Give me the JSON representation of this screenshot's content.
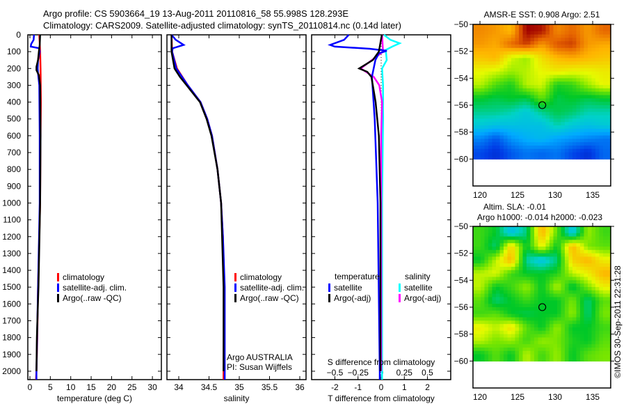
{
  "header": {
    "title_line1": "Argo profile: CS 5903664_19 13-Aug-2011 20110816_58 55.998S 128.293E",
    "title_line2": "Climatology: CARS2009. Satellite-adjusted climatology: synTS_20110814.nc (0.14d later)"
  },
  "colors": {
    "climatology": "#ff0000",
    "satellite": "#0000ff",
    "argo": "#000000",
    "salinity_satellite": "#00ffff",
    "salinity_argo": "#ff00ff"
  },
  "chart_data": [
    {
      "type": "line",
      "name": "temperature-profile",
      "xlabel": "temperature (deg C)",
      "ylabel": "",
      "xlim": [
        -0.5,
        32.7
      ],
      "ylim": [
        2050,
        0
      ],
      "xticks": [
        0,
        5,
        10,
        15,
        20,
        25,
        30
      ],
      "yticks": [
        0,
        100,
        200,
        300,
        400,
        500,
        600,
        700,
        800,
        900,
        1000,
        1100,
        1200,
        1300,
        1400,
        1500,
        1600,
        1700,
        1800,
        1900,
        2000
      ],
      "legend": [
        "climatology",
        "satellite-adj. clim.",
        "Argo(..raw -QC)"
      ],
      "series": [
        {
          "name": "climatology",
          "color": "#ff0000",
          "depth": [
            0,
            100,
            200,
            400,
            600,
            1000,
            1100,
            1400,
            1500,
            1800,
            2000,
            2050
          ],
          "values": [
            2.3,
            2.5,
            2.6,
            2.7,
            2.6,
            2.5,
            2.4,
            2.1,
            2.0,
            1.8,
            1.6,
            1.5
          ]
        },
        {
          "name": "satellite-adj. clim.",
          "color": "#0000ff",
          "depth": [
            0,
            30,
            55,
            70,
            80,
            100,
            150,
            200,
            230,
            300,
            600,
            1000,
            1500,
            2000,
            2050
          ],
          "values": [
            1.0,
            0.9,
            0.3,
            0.2,
            2.3,
            2.4,
            2.0,
            1.9,
            2.0,
            2.3,
            2.4,
            2.4,
            2.0,
            1.6,
            1.6
          ]
        },
        {
          "name": "Argo(..raw -QC)",
          "color": "#000000",
          "depth": [
            0,
            60,
            100,
            150,
            190,
            210,
            240,
            300,
            600,
            1000,
            1500,
            1800,
            2000
          ],
          "values": [
            2.5,
            2.4,
            2.2,
            2.0,
            1.6,
            1.6,
            2.2,
            2.5,
            2.6,
            2.5,
            2.1,
            1.7,
            1.6
          ]
        }
      ]
    },
    {
      "type": "line",
      "name": "salinity-profile",
      "xlabel": "salinity",
      "xlim": [
        33.85,
        36.15
      ],
      "ylim": [
        2050,
        0
      ],
      "xticks": [
        34,
        34.5,
        35,
        35.5,
        36
      ],
      "xtick_labels": [
        "34",
        "34.5",
        "35",
        "35.5",
        "36"
      ],
      "legend": [
        "climatology",
        "satellite-adj. clim.",
        "Argo(..raw -QC)"
      ],
      "annotation_line1": "Argo AUSTRALIA",
      "annotation_line2": "PI: Susan Wijffels",
      "series": [
        {
          "name": "climatology",
          "color": "#ff0000",
          "depth": [
            0,
            100,
            200,
            300,
            400,
            500,
            600,
            800,
            1000,
            1200,
            1500,
            2000,
            2050
          ],
          "values": [
            33.88,
            33.89,
            33.97,
            34.15,
            34.36,
            34.47,
            34.55,
            34.64,
            34.7,
            34.73,
            34.75,
            34.74,
            34.74
          ]
        },
        {
          "name": "satellite-adj. clim.",
          "color": "#0000ff",
          "depth": [
            0,
            30,
            60,
            80,
            100,
            200,
            300,
            400,
            500,
            600,
            800,
            1000,
            1200,
            1500,
            2000,
            2050
          ],
          "values": [
            33.88,
            33.95,
            34.08,
            33.9,
            33.89,
            33.96,
            34.15,
            34.36,
            34.47,
            34.55,
            34.64,
            34.7,
            34.73,
            34.76,
            34.76,
            34.76
          ]
        },
        {
          "name": "Argo(..raw -QC)",
          "color": "#000000",
          "depth": [
            0,
            100,
            200,
            250,
            300,
            400,
            500,
            600,
            800,
            1000,
            1500,
            2000
          ],
          "values": [
            33.88,
            33.88,
            33.93,
            34.02,
            34.13,
            34.35,
            34.46,
            34.54,
            34.64,
            34.7,
            34.74,
            34.74
          ]
        }
      ]
    },
    {
      "type": "line",
      "name": "difference-profile",
      "xlabel": "T difference from climatology",
      "x2label": "S difference from climatology",
      "xlim": [
        -3,
        3
      ],
      "ylim": [
        2050,
        0
      ],
      "xticks": [
        -2,
        -1,
        0,
        1,
        2
      ],
      "x2ticks": [
        -0.5,
        -0.25,
        0,
        0.25,
        0.5
      ],
      "legend_title_t": "temperature",
      "legend_title_s": "salinity",
      "legend": [
        "satellite",
        "Argo(-adj)",
        "satellite",
        "Argo(-adj)"
      ],
      "series": [
        {
          "name": "T satellite",
          "axis": "T",
          "color": "#0000ff",
          "depth": [
            0,
            30,
            60,
            70,
            83,
            95,
            110,
            150,
            250,
            500,
            1000,
            2000,
            2050
          ],
          "values": [
            -1.4,
            -1.6,
            -2.2,
            -2.0,
            -0.5,
            0.24,
            -0.1,
            -0.25,
            -0.4,
            -0.28,
            -0.15,
            -0.06,
            -0.06
          ]
        },
        {
          "name": "T Argo(-adj)",
          "axis": "T",
          "color": "#000000",
          "depth": [
            0,
            100,
            150,
            200,
            220,
            250,
            300,
            400,
            600,
            1000,
            2000
          ],
          "values": [
            0.03,
            -0.1,
            -0.36,
            -0.95,
            -0.6,
            -0.42,
            -0.36,
            -0.24,
            -0.1,
            -0.03,
            -0.03
          ]
        },
        {
          "name": "S satellite",
          "axis": "S",
          "color": "#00ffff",
          "depth": [
            0,
            30,
            50,
            70,
            90,
            150,
            200,
            300,
            500,
            1000,
            2000,
            2050
          ],
          "values": [
            0.03,
            0.1,
            0.2,
            0.12,
            0.05,
            0.06,
            0.01,
            0.02,
            0.02,
            0.01,
            0.01,
            0.01
          ]
        },
        {
          "name": "S Argo(-adj)",
          "axis": "S",
          "color": "#ff00ff",
          "depth": [
            0,
            100,
            150,
            200,
            250,
            300,
            400,
            600,
            2000
          ],
          "values": [
            0.01,
            0.02,
            -0.1,
            -0.22,
            -0.08,
            -0.02,
            0.01,
            0.0,
            0.0
          ]
        }
      ]
    },
    {
      "type": "heatmap",
      "name": "sst-map",
      "title": "AMSR-E SST: 0.908 Argo: 2.51",
      "xlim": [
        119.07,
        137.4
      ],
      "ylim": [
        -62,
        -50
      ],
      "xticks": [
        120,
        125,
        130,
        135
      ],
      "yticks": [
        -50,
        -52,
        -54,
        -56,
        -58,
        -60
      ],
      "data_lat_range": [
        -60,
        -50
      ],
      "color_range": [
        -1.5,
        3.3
      ],
      "marker": {
        "lon": 128.293,
        "lat": -55.998
      },
      "values": [
        [
          2.6,
          2.5,
          2.3,
          3.3,
          3.2,
          2.6,
          2.8,
          2.5,
          2.8
        ],
        [
          2.5,
          2.4,
          2.8,
          3.0,
          2.5,
          2.9,
          3.0,
          2.5,
          2.4
        ],
        [
          2.2,
          2.3,
          1.7,
          1.5,
          2.0,
          2.3,
          2.4,
          2.3,
          2.2
        ],
        [
          1.8,
          1.7,
          1.5,
          1.6,
          1.8,
          1.9,
          1.8,
          1.8,
          1.9
        ],
        [
          1.6,
          1.2,
          1.0,
          1.6,
          1.7,
          1.0,
          1.1,
          1.5,
          1.8
        ],
        [
          0.9,
          0.8,
          0.9,
          0.8,
          1.3,
          0.8,
          0.9,
          0.8,
          0.9
        ],
        [
          0.6,
          0.6,
          0.5,
          0.3,
          0.6,
          0.8,
          0.7,
          0.5,
          0.5
        ],
        [
          0.3,
          0.2,
          0.2,
          0.2,
          0.2,
          0.5,
          0.3,
          0.2,
          0.3
        ],
        [
          -0.3,
          -0.6,
          -0.2,
          0.0,
          0.1,
          -0.1,
          -0.2,
          -0.3,
          -0.4
        ],
        [
          -0.7,
          -0.9,
          -0.6,
          -0.4,
          -0.5,
          -0.4,
          -0.7,
          -0.9,
          -0.5
        ]
      ]
    },
    {
      "type": "heatmap",
      "name": "sla-map",
      "title_line1": "Altim. SLA: -0.01",
      "title_line2": "Argo h1000: -0.014 h2000: -0.023",
      "xlim": [
        119.07,
        137.4
      ],
      "ylim": [
        -62,
        -50
      ],
      "xticks": [
        120,
        125,
        130,
        135
      ],
      "yticks": [
        -50,
        -52,
        -54,
        -56,
        -58,
        -60
      ],
      "data_lat_range": [
        -60,
        -50
      ],
      "color_range": [
        -0.2,
        0.2
      ],
      "marker": {
        "lon": 128.293,
        "lat": -55.998
      },
      "values": [
        [
          0.02,
          0.0,
          -0.06,
          -0.02,
          0.12,
          0.03,
          -0.06,
          0.05,
          0.02
        ],
        [
          0.02,
          -0.02,
          0.1,
          0.0,
          0.08,
          0.0,
          0.12,
          0.04,
          0.03
        ],
        [
          0.0,
          0.06,
          0.12,
          -0.03,
          -0.06,
          -0.02,
          0.1,
          0.12,
          0.08
        ],
        [
          0.06,
          0.07,
          0.02,
          0.0,
          0.0,
          0.01,
          0.06,
          0.08,
          0.12
        ],
        [
          0.06,
          0.0,
          0.02,
          0.05,
          0.0,
          0.06,
          -0.01,
          0.04,
          0.08
        ],
        [
          0.03,
          -0.02,
          0.0,
          0.02,
          0.0,
          0.0,
          0.04,
          -0.02,
          0.03
        ],
        [
          0.02,
          0.03,
          0.0,
          -0.01,
          0.0,
          0.0,
          0.05,
          -0.02,
          0.04
        ],
        [
          0.08,
          0.06,
          0.09,
          0.03,
          0.0,
          0.05,
          0.0,
          0.0,
          0.02
        ],
        [
          0.06,
          0.04,
          0.05,
          0.02,
          0.05,
          0.04,
          0.01,
          0.0,
          0.03
        ],
        [
          0.0,
          0.03,
          0.0,
          0.06,
          0.02,
          0.05,
          0.0,
          0.03,
          0.04
        ]
      ]
    }
  ],
  "credit": "©IMOS 30-Sep-2011 22:31:28"
}
